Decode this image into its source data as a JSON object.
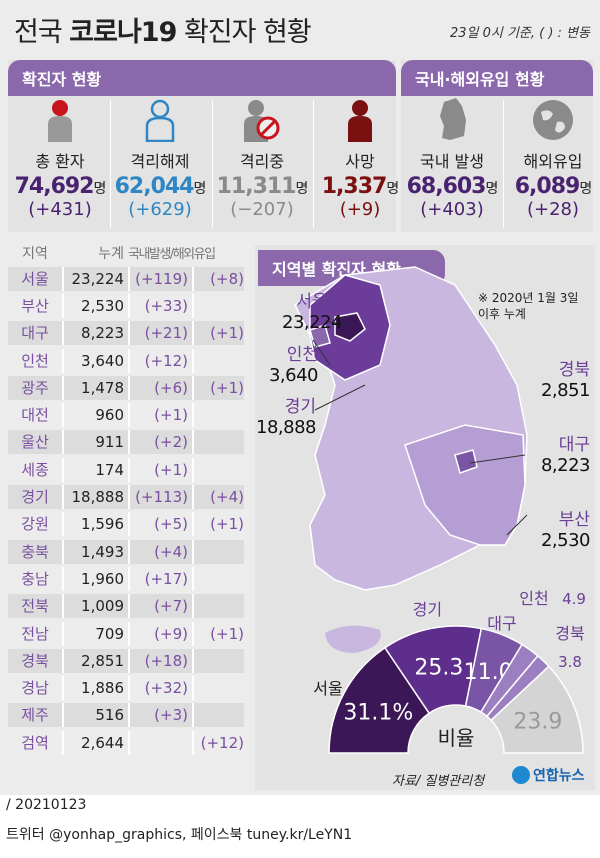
{
  "title": {
    "pre": "전국 ",
    "bold": "코로나19",
    "post": " 확진자 현황"
  },
  "basis": "23일 0시 기준, ( ) : 변동",
  "sections": {
    "confirmed": "확진자 현황",
    "origin": "국내·해외유입 현황",
    "regional": "지역별 확진자 현황"
  },
  "stats": [
    {
      "icon": "person-red-icon",
      "label": "총 환자",
      "value": "74,692",
      "unit": "명",
      "change": "(+431)",
      "color": "#4a2370"
    },
    {
      "icon": "person-outline-icon",
      "label": "격리해제",
      "value": "62,044",
      "unit": "명",
      "change": "(+629)",
      "color": "#2f86c4"
    },
    {
      "icon": "person-prohibited-icon",
      "label": "격리중",
      "value": "11,311",
      "unit": "명",
      "change": "(−207)",
      "color": "#8a8a8a"
    },
    {
      "icon": "person-dark-red-icon",
      "label": "사망",
      "value": "1,337",
      "unit": "명",
      "change": "(+9)",
      "color": "#7a1010"
    },
    {
      "icon": "korea-map-icon",
      "label": "국내 발생",
      "value": "68,603",
      "unit": "명",
      "change": "(+403)",
      "color": "#4a2370"
    },
    {
      "icon": "globe-icon",
      "label": "해외유입",
      "value": "6,089",
      "unit": "명",
      "change": "(+28)",
      "color": "#4a2370"
    }
  ],
  "table": {
    "headers": [
      "지역",
      "누계",
      "국내발생/해외유입"
    ],
    "rows": [
      [
        "서울",
        "23,224",
        "(+119)",
        "(+8)"
      ],
      [
        "부산",
        "2,530",
        "(+33)",
        ""
      ],
      [
        "대구",
        "8,223",
        "(+21)",
        "(+1)"
      ],
      [
        "인천",
        "3,640",
        "(+12)",
        ""
      ],
      [
        "광주",
        "1,478",
        "(+6)",
        "(+1)"
      ],
      [
        "대전",
        "960",
        "(+1)",
        ""
      ],
      [
        "울산",
        "911",
        "(+2)",
        ""
      ],
      [
        "세종",
        "174",
        "(+1)",
        ""
      ],
      [
        "경기",
        "18,888",
        "(+113)",
        "(+4)"
      ],
      [
        "강원",
        "1,596",
        "(+5)",
        "(+1)"
      ],
      [
        "충북",
        "1,493",
        "(+4)",
        ""
      ],
      [
        "충남",
        "1,960",
        "(+17)",
        ""
      ],
      [
        "전북",
        "1,009",
        "(+7)",
        ""
      ],
      [
        "전남",
        "709",
        "(+9)",
        "(+1)"
      ],
      [
        "경북",
        "2,851",
        "(+18)",
        ""
      ],
      [
        "경남",
        "1,886",
        "(+32)",
        ""
      ],
      [
        "제주",
        "516",
        "(+3)",
        ""
      ],
      [
        "검역",
        "2,644",
        "",
        "(+12)"
      ]
    ]
  },
  "map": {
    "note": "※ 2020년 1월 3일 이후 누계",
    "labels": [
      {
        "name": "서울",
        "value": "23,224"
      },
      {
        "name": "인천",
        "value": "3,640"
      },
      {
        "name": "경기",
        "value": "18,888"
      },
      {
        "name": "경북",
        "value": "2,851"
      },
      {
        "name": "대구",
        "value": "8,223"
      },
      {
        "name": "부산",
        "value": "2,530"
      }
    ]
  },
  "chart_data": {
    "type": "pie",
    "variant": "half-donut",
    "center_label": "비율",
    "unit": "%",
    "slices": [
      {
        "label": "서울",
        "value": 31.1,
        "display": "31.1%",
        "color": "#3b1757"
      },
      {
        "label": "경기",
        "value": 25.3,
        "display": "25.3",
        "color": "#5e2e8c"
      },
      {
        "label": "대구",
        "value": 11.0,
        "display": "11.0",
        "color": "#7a55a6"
      },
      {
        "label": "인천",
        "value": 4.9,
        "display": "4.9",
        "color": "#9b7fc0"
      },
      {
        "label": "경북",
        "value": 3.8,
        "display": "3.8",
        "color": "#9b7fc0"
      },
      {
        "label": "",
        "value": 23.9,
        "display": "23.9",
        "color": "#d4d4d4"
      }
    ]
  },
  "source": "자료/ 질병관리청",
  "logo": "연합뉴스",
  "footer": {
    "date": "/ 20210123",
    "social": "트위터 @yonhap_graphics, 페이스북 tuney.kr/LeYN1"
  }
}
